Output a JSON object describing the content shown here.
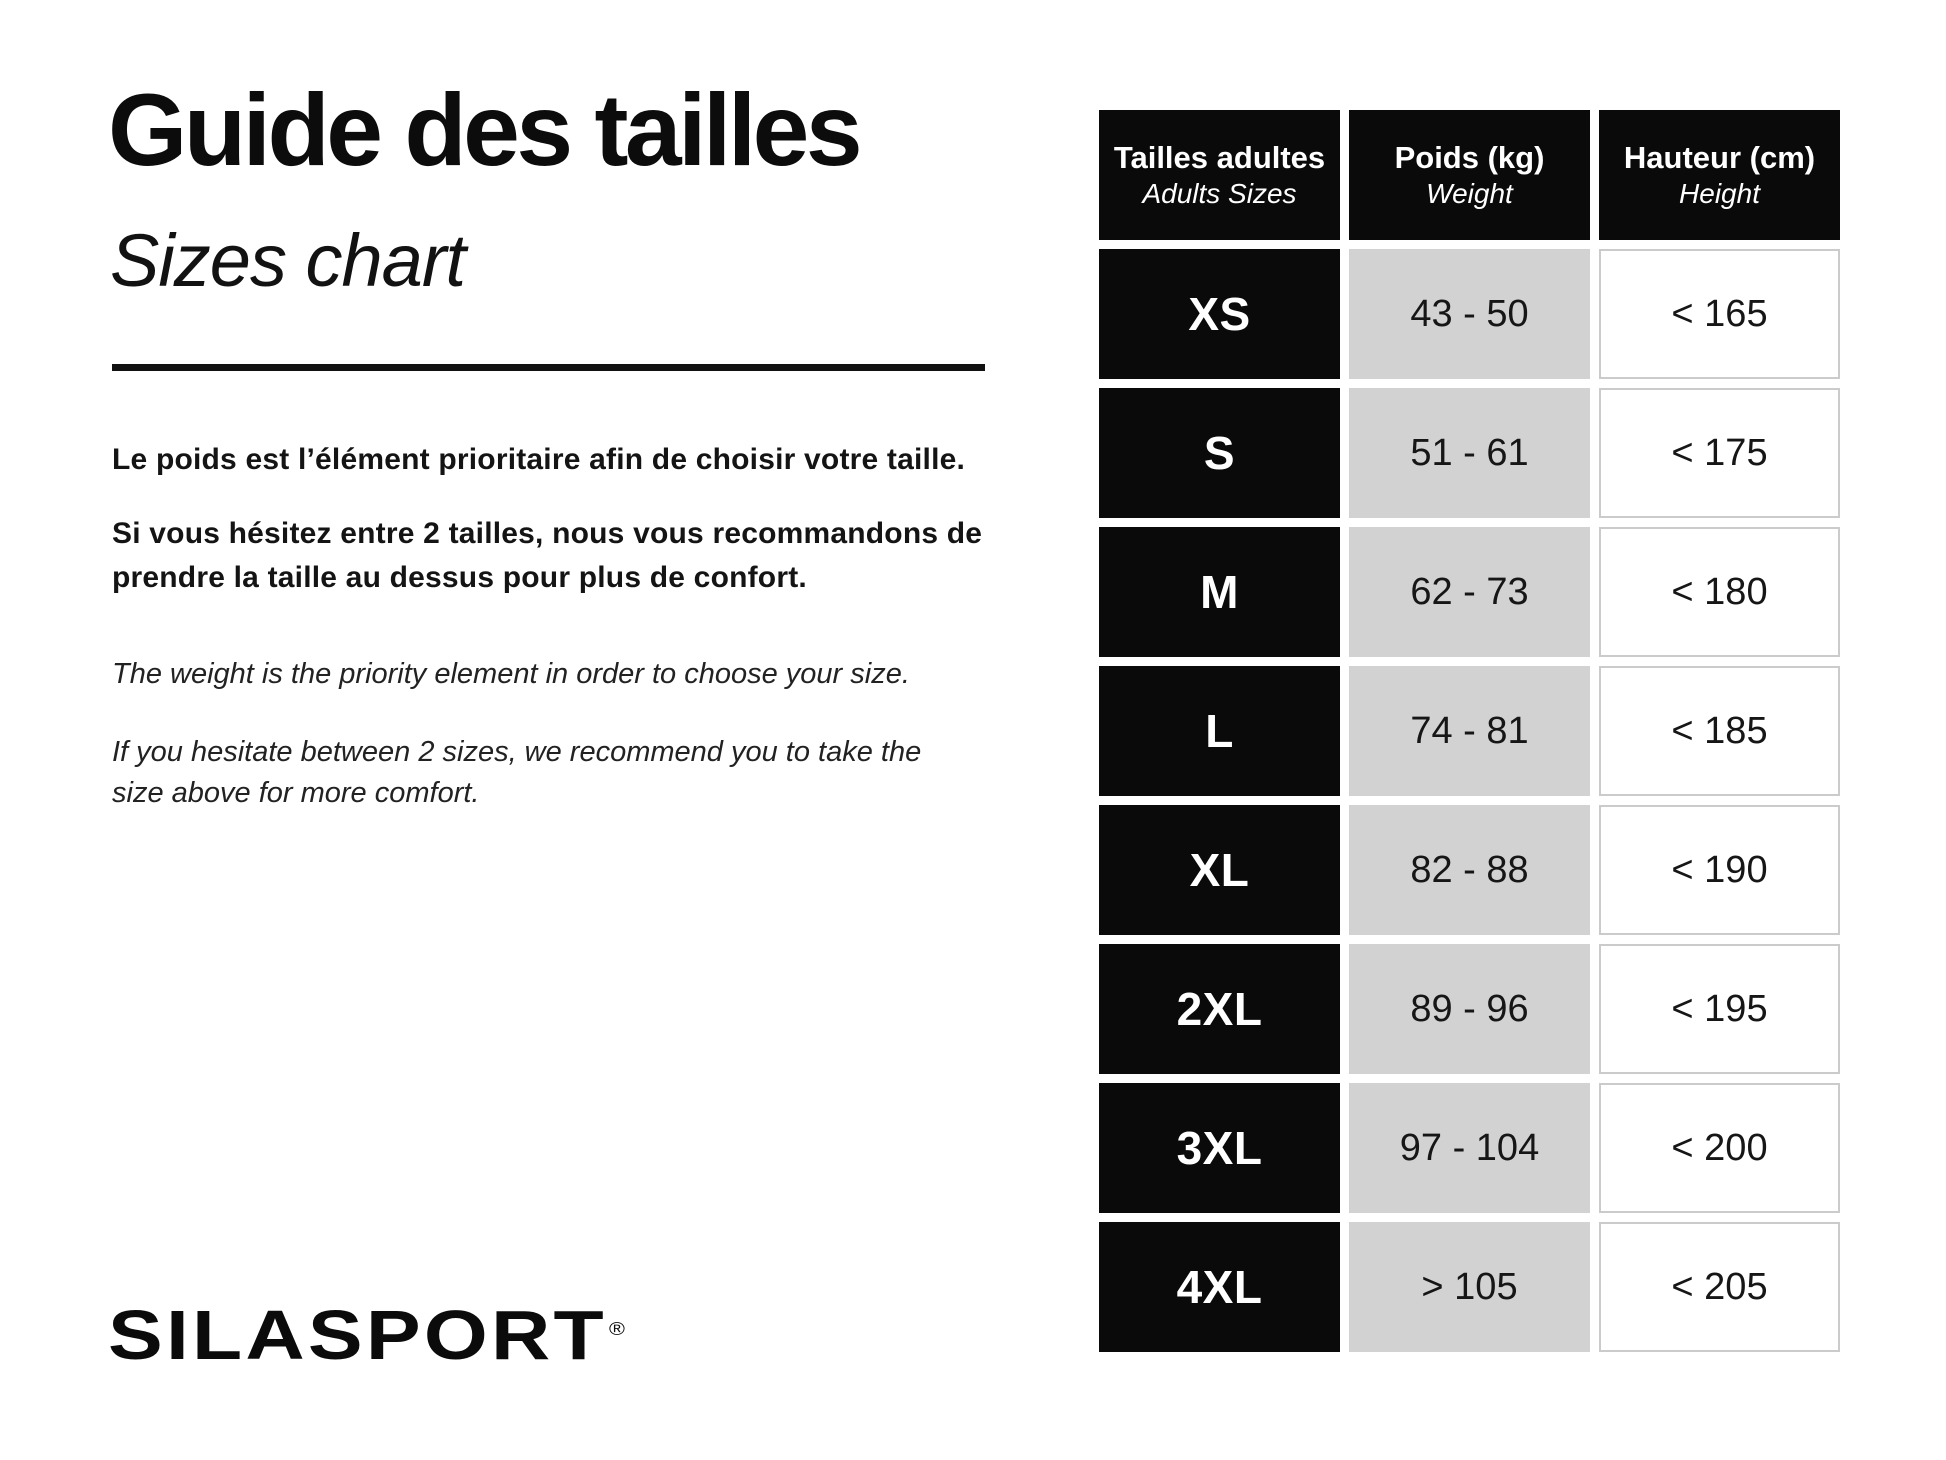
{
  "header": {
    "title_fr": "Guide des tailles",
    "title_en": "Sizes chart"
  },
  "intro": {
    "fr_line1": "Le poids est l’élément prioritaire afin de choisir votre taille.",
    "fr_line2": "Si vous hésitez entre 2 tailles, nous vous recommandons de prendre la taille au dessus pour plus de confort.",
    "en_line1": "The weight is the priority element in order to choose your size.",
    "en_line2": "If you hesitate between 2 sizes, we recommend you to take the size above for more comfort."
  },
  "table": {
    "columns": [
      {
        "label_fr": "Tailles adultes",
        "label_en": "Adults Sizes"
      },
      {
        "label_fr": "Poids (kg)",
        "label_en": "Weight"
      },
      {
        "label_fr": "Hauteur (cm)",
        "label_en": "Height"
      }
    ],
    "rows": [
      {
        "size": "XS",
        "weight_kg": "43 - 50",
        "height_cm": "< 165"
      },
      {
        "size": "S",
        "weight_kg": "51 - 61",
        "height_cm": "< 175"
      },
      {
        "size": "M",
        "weight_kg": "62 - 73",
        "height_cm": "< 180"
      },
      {
        "size": "L",
        "weight_kg": "74 - 81",
        "height_cm": "< 185"
      },
      {
        "size": "XL",
        "weight_kg": "82 - 88",
        "height_cm": "< 190"
      },
      {
        "size": "2XL",
        "weight_kg": "89 - 96",
        "height_cm": "< 195"
      },
      {
        "size": "3XL",
        "weight_kg": "97 - 104",
        "height_cm": "< 200"
      },
      {
        "size": "4XL",
        "weight_kg": "> 105",
        "height_cm": "< 205"
      }
    ]
  },
  "footer": {
    "brand": "SILASPORT",
    "trademark": "®"
  },
  "colors": {
    "background": "#ffffff",
    "cell_black": "#0a0a0a",
    "cell_gray": "#d2d2d2",
    "cell_white_border": "#cbcbcb",
    "text": "#121212"
  }
}
